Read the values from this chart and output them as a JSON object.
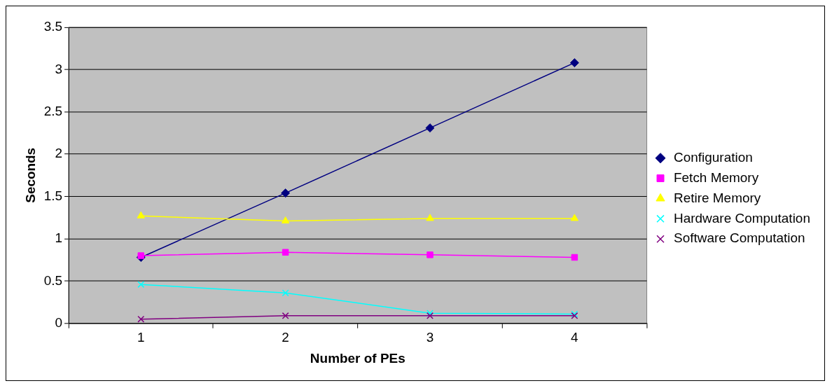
{
  "chart_data": {
    "type": "line",
    "xlabel": "Number of PEs",
    "ylabel": "Seconds",
    "categories": [
      "1",
      "2",
      "3",
      "4"
    ],
    "ylim": [
      0,
      3.5
    ],
    "yticks": [
      0,
      0.5,
      1,
      1.5,
      2,
      2.5,
      3,
      3.5
    ],
    "grid": "y",
    "legend": "right",
    "series": [
      {
        "name": "Configuration",
        "color": "#000080",
        "marker": "diamond",
        "values": [
          0.78,
          1.54,
          2.31,
          3.08
        ]
      },
      {
        "name": "Fetch Memory",
        "color": "#ff00ff",
        "marker": "square",
        "values": [
          0.8,
          0.84,
          0.81,
          0.78
        ]
      },
      {
        "name": "Retire Memory",
        "color": "#ffff00",
        "marker": "triangle",
        "values": [
          1.27,
          1.21,
          1.24,
          1.24
        ]
      },
      {
        "name": "Hardware Computation",
        "color": "#00ffff",
        "marker": "cross",
        "values": [
          0.46,
          0.36,
          0.12,
          0.11
        ]
      },
      {
        "name": "Software Computation",
        "color": "#800080",
        "marker": "cross",
        "values": [
          0.05,
          0.09,
          0.09,
          0.09
        ]
      }
    ]
  }
}
